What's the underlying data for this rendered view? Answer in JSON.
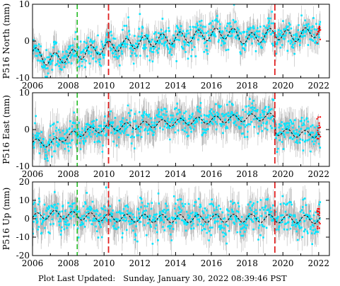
{
  "chart_data": [
    {
      "type": "scatter",
      "ylabel": "P516 North (mm)",
      "xlim": [
        2006,
        2022.6
      ],
      "ylim": [
        -10,
        10
      ],
      "xticks": [
        "2006",
        "2008",
        "2010",
        "2012",
        "2014",
        "2016",
        "2018",
        "2020",
        "2022"
      ],
      "yticks": [
        "-10",
        "0",
        "10"
      ],
      "grid": false,
      "events": {
        "green_dashed": [
          2008.5
        ],
        "red_dashed": [
          2010.25,
          2019.55
        ]
      },
      "trend": {
        "points": [
          [
            2006.0,
            -2.8
          ],
          [
            2006.8,
            -5.0
          ],
          [
            2008.0,
            -4.2
          ],
          [
            2010.0,
            -1.8
          ],
          [
            2012.0,
            -0.3
          ],
          [
            2014.0,
            0.8
          ],
          [
            2016.0,
            1.8
          ],
          [
            2017.0,
            2.3
          ],
          [
            2018.0,
            0.4
          ],
          [
            2019.55,
            2.2
          ],
          [
            2020.5,
            1.2
          ],
          [
            2022.0,
            2.8
          ]
        ],
        "amp": 1.6,
        "period_yr": 1.0
      },
      "scatter_spread": 2.0,
      "error_bar": 3.5,
      "recent_red": {
        "x": [
          2021.9,
          2022.1
        ],
        "y": [
          -0.5,
          4.0
        ]
      }
    },
    {
      "type": "scatter",
      "ylabel": "P516 East (mm)",
      "xlim": [
        2006,
        2022.6
      ],
      "ylim": [
        -10,
        10
      ],
      "xticks": [
        "2006",
        "2008",
        "2010",
        "2012",
        "2014",
        "2016",
        "2018",
        "2020",
        "2022"
      ],
      "yticks": [
        "-10",
        "0",
        "10"
      ],
      "grid": false,
      "events": {
        "green_dashed": [
          2008.5
        ],
        "red_dashed": [
          2010.25,
          2019.55
        ]
      },
      "trend": {
        "points": [
          [
            2006.0,
            -3.5
          ],
          [
            2007.0,
            -3.8
          ],
          [
            2008.0,
            -1.8
          ],
          [
            2009.0,
            -0.5
          ],
          [
            2010.0,
            0.3
          ],
          [
            2012.0,
            1.2
          ],
          [
            2014.0,
            2.0
          ],
          [
            2016.0,
            2.6
          ],
          [
            2018.0,
            3.2
          ],
          [
            2019.5,
            3.5
          ],
          [
            2019.6,
            -0.5
          ],
          [
            2021.0,
            -1.2
          ],
          [
            2022.0,
            -1.2
          ]
        ],
        "amp": 1.0,
        "period_yr": 1.0
      },
      "scatter_spread": 2.0,
      "error_bar": 4.5,
      "recent_red": {
        "x": [
          2021.9,
          2022.1
        ],
        "y": [
          -3.0,
          3.5
        ]
      }
    },
    {
      "type": "scatter",
      "ylabel": "P516 Up (mm)",
      "xlim": [
        2006,
        2022.6
      ],
      "ylim": [
        -20,
        20
      ],
      "xticks": [
        "2006",
        "2008",
        "2010",
        "2012",
        "2014",
        "2016",
        "2018",
        "2020",
        "2022"
      ],
      "yticks": [
        "-20",
        "-10",
        "0",
        "10",
        "20"
      ],
      "grid": false,
      "events": {
        "green_dashed": [
          2008.5
        ],
        "red_dashed": [
          2010.25,
          2019.55
        ]
      },
      "trend": {
        "points": [
          [
            2006.0,
            0.5
          ],
          [
            2007.0,
            2.5
          ],
          [
            2008.0,
            2.0
          ],
          [
            2010.0,
            0.5
          ],
          [
            2014.0,
            0.0
          ],
          [
            2018.0,
            0.3
          ],
          [
            2022.0,
            -0.5
          ]
        ],
        "amp": 2.2,
        "period_yr": 1.0
      },
      "scatter_spread": 4.5,
      "error_bar": 9.0,
      "recent_red": {
        "x": [
          2021.9,
          2022.1
        ],
        "y": [
          -6.0,
          6.0
        ]
      }
    }
  ],
  "colors": {
    "points": "#00e5ff",
    "error_bars": "#b8b8b8",
    "trend": "#000000",
    "event_green": "#22bb22",
    "event_red": "#e02020",
    "recent_points": "#ff0000"
  },
  "footer": {
    "label": "Plot Last Updated:",
    "timestamp": "Sunday, January 30, 2022 08:39:46 PST"
  }
}
